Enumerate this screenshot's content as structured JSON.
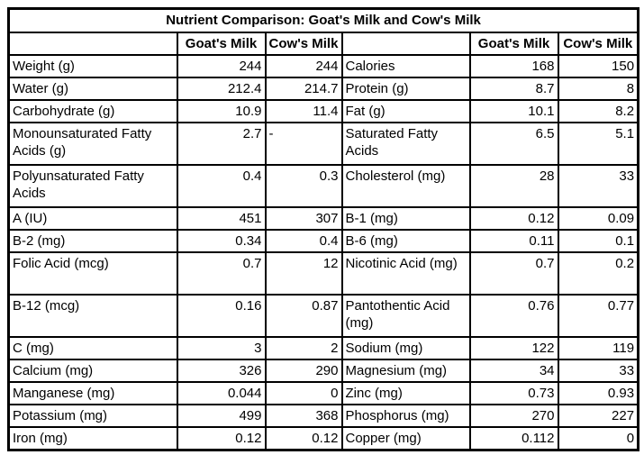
{
  "table": {
    "title": "Nutrient Comparison: Goat's Milk and Cow's Milk",
    "column_headers": {
      "goat": "Goat's Milk",
      "cow": "Cow's Milk"
    },
    "rows": [
      {
        "tall": false,
        "left": {
          "label": "Weight (g)",
          "goat": "244",
          "cow": "244"
        },
        "right": {
          "label": "Calories",
          "goat": "168",
          "cow": "150"
        }
      },
      {
        "tall": false,
        "left": {
          "label": "Water (g)",
          "goat": "212.4",
          "cow": "214.7"
        },
        "right": {
          "label": "Protein (g)",
          "goat": "8.7",
          "cow": "8"
        }
      },
      {
        "tall": false,
        "left": {
          "label": "Carbohydrate (g)",
          "goat": "10.9",
          "cow": "11.4"
        },
        "right": {
          "label": "Fat (g)",
          "goat": "10.1",
          "cow": "8.2"
        }
      },
      {
        "tall": true,
        "left": {
          "label": "Monounsaturated Fatty Acids (g)",
          "goat": "2.7",
          "cow": "-"
        },
        "right": {
          "label": "Saturated Fatty Acids",
          "goat": "6.5",
          "cow": "5.1"
        }
      },
      {
        "tall": true,
        "left": {
          "label": "Polyunsaturated Fatty Acids",
          "goat": "0.4",
          "cow": "0.3"
        },
        "right": {
          "label": "Cholesterol (mg)",
          "goat": "28",
          "cow": "33"
        }
      },
      {
        "tall": false,
        "left": {
          "label": "A (IU)",
          "goat": "451",
          "cow": "307"
        },
        "right": {
          "label": "B-1 (mg)",
          "goat": "0.12",
          "cow": "0.09"
        }
      },
      {
        "tall": false,
        "left": {
          "label": "B-2 (mg)",
          "goat": "0.34",
          "cow": "0.4"
        },
        "right": {
          "label": "B-6 (mg)",
          "goat": "0.11",
          "cow": "0.1"
        }
      },
      {
        "tall": true,
        "left": {
          "label": "Folic Acid (mcg)",
          "goat": "0.7",
          "cow": "12"
        },
        "right": {
          "label": "Nicotinic Acid (mg)",
          "goat": "0.7",
          "cow": "0.2"
        }
      },
      {
        "tall": true,
        "left": {
          "label": "B-12 (mcg)",
          "goat": "0.16",
          "cow": "0.87"
        },
        "right": {
          "label": "Pantothentic Acid (mg)",
          "goat": "0.76",
          "cow": "0.77"
        }
      },
      {
        "tall": false,
        "left": {
          "label": "C (mg)",
          "goat": "3",
          "cow": "2"
        },
        "right": {
          "label": "Sodium (mg)",
          "goat": "122",
          "cow": "119"
        }
      },
      {
        "tall": false,
        "left": {
          "label": "Calcium (mg)",
          "goat": "326",
          "cow": "290"
        },
        "right": {
          "label": "Magnesium (mg)",
          "goat": "34",
          "cow": "33"
        }
      },
      {
        "tall": false,
        "left": {
          "label": "Manganese (mg)",
          "goat": "0.044",
          "cow": "0"
        },
        "right": {
          "label": "Zinc (mg)",
          "goat": "0.73",
          "cow": "0.93"
        }
      },
      {
        "tall": false,
        "left": {
          "label": "Potassium (mg)",
          "goat": "499",
          "cow": "368"
        },
        "right": {
          "label": "Phosphorus (mg)",
          "goat": "270",
          "cow": "227"
        }
      },
      {
        "tall": false,
        "left": {
          "label": "Iron (mg)",
          "goat": "0.12",
          "cow": "0.12"
        },
        "right": {
          "label": "Copper (mg)",
          "goat": "0.112",
          "cow": "0"
        }
      }
    ]
  }
}
